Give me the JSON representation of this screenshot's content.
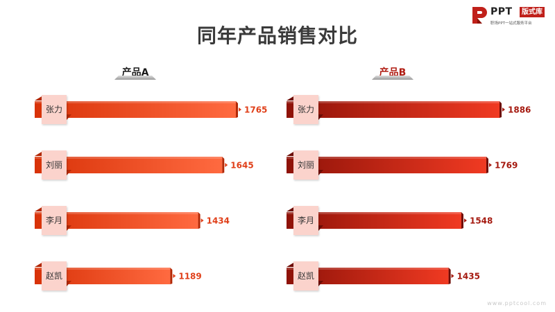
{
  "title": "同年产品销售对比",
  "logo": {
    "brand": "PPT",
    "tag": "版式库",
    "subtitle": "职场PPT一站式服务平台"
  },
  "watermark": "www.pptcool.com",
  "colors": {
    "panel_a": [
      "#d83208",
      "#ff6a40"
    ],
    "panel_b": [
      "#8e1208",
      "#f03a22"
    ],
    "label_a": "#e0401a",
    "label_b": "#a51a10",
    "tab_fill": "#fbd3cc"
  },
  "chart_data": [
    {
      "type": "bar",
      "orientation": "horizontal",
      "title": "产品A",
      "categories": [
        "张力",
        "刘丽",
        "李月",
        "赵凯"
      ],
      "values": [
        1765,
        1645,
        1434,
        1189
      ],
      "xlim": [
        0,
        1900
      ]
    },
    {
      "type": "bar",
      "orientation": "horizontal",
      "title": "产品B",
      "categories": [
        "张力",
        "刘丽",
        "李月",
        "赵凯"
      ],
      "values": [
        1886,
        1769,
        1548,
        1435
      ],
      "xlim": [
        0,
        1900
      ]
    }
  ]
}
